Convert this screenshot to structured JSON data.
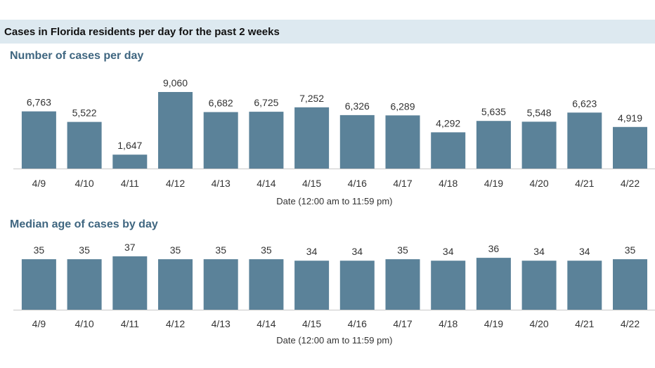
{
  "header": {
    "title": "Cases in Florida residents per day for the past 2 weeks"
  },
  "colors": {
    "bar": "#5b8299",
    "header_band": "#dde9f0",
    "title": "#3f6680"
  },
  "chart_data": [
    {
      "type": "bar",
      "title": "Number of cases per day",
      "xlabel": "Date (12:00 am to 11:59 pm)",
      "ylabel": "",
      "categories": [
        "4/9",
        "4/10",
        "4/11",
        "4/12",
        "4/13",
        "4/14",
        "4/15",
        "4/16",
        "4/17",
        "4/18",
        "4/19",
        "4/20",
        "4/21",
        "4/22"
      ],
      "values": [
        6763,
        5522,
        1647,
        9060,
        6682,
        6725,
        7252,
        6326,
        6289,
        4292,
        5635,
        5548,
        6623,
        4919
      ],
      "value_labels": [
        "6,763",
        "5,522",
        "1,647",
        "9,060",
        "6,682",
        "6,725",
        "7,252",
        "6,326",
        "6,289",
        "4,292",
        "5,635",
        "5,548",
        "6,623",
        "4,919"
      ],
      "ylim": [
        0,
        9060
      ],
      "grid": false,
      "legend": "none"
    },
    {
      "type": "bar",
      "title": "Median age of cases by day",
      "xlabel": "Date (12:00 am to 11:59 pm)",
      "ylabel": "",
      "categories": [
        "4/9",
        "4/10",
        "4/11",
        "4/12",
        "4/13",
        "4/14",
        "4/15",
        "4/16",
        "4/17",
        "4/18",
        "4/19",
        "4/20",
        "4/21",
        "4/22"
      ],
      "values": [
        35,
        35,
        37,
        35,
        35,
        35,
        34,
        34,
        35,
        34,
        36,
        34,
        34,
        35
      ],
      "value_labels": [
        "35",
        "35",
        "37",
        "35",
        "35",
        "35",
        "34",
        "34",
        "35",
        "34",
        "36",
        "34",
        "34",
        "35"
      ],
      "ylim": [
        0,
        37
      ],
      "grid": false,
      "legend": "none"
    }
  ]
}
